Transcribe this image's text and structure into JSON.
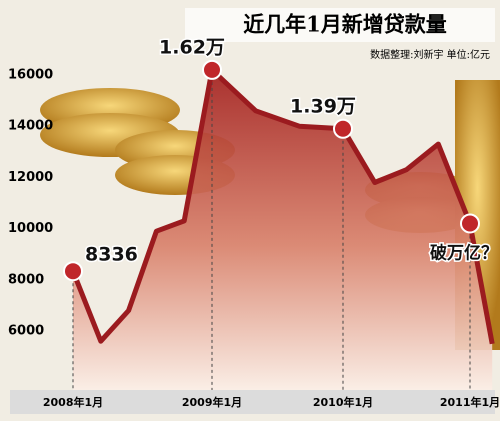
{
  "chart_data": {
    "type": "line",
    "title": "近几年1月新增贷款量",
    "subtitle": "数据整理:刘新宇 单位:亿元",
    "categories": [
      "2008年1月",
      null,
      null,
      null,
      null,
      "2009年1月",
      null,
      null,
      "2010年1月",
      null,
      null,
      null,
      "2011年1月",
      null
    ],
    "series": [
      {
        "name": "新增贷款",
        "color": "#9b1b1f",
        "values": [
          8336,
          5600,
          6800,
          9900,
          10300,
          16200,
          14600,
          14000,
          13900,
          11800,
          12300,
          13300,
          10200,
          5500
        ],
        "value_labels": [
          "8336",
          null,
          null,
          null,
          null,
          "1.62万",
          null,
          null,
          "1.39万",
          null,
          null,
          null,
          null,
          null
        ]
      }
    ],
    "annotations": [
      "破万亿？"
    ],
    "ylim": [
      4000,
      17000
    ],
    "yticks": [
      6000,
      8000,
      10000,
      12000,
      14000,
      16000
    ]
  }
}
